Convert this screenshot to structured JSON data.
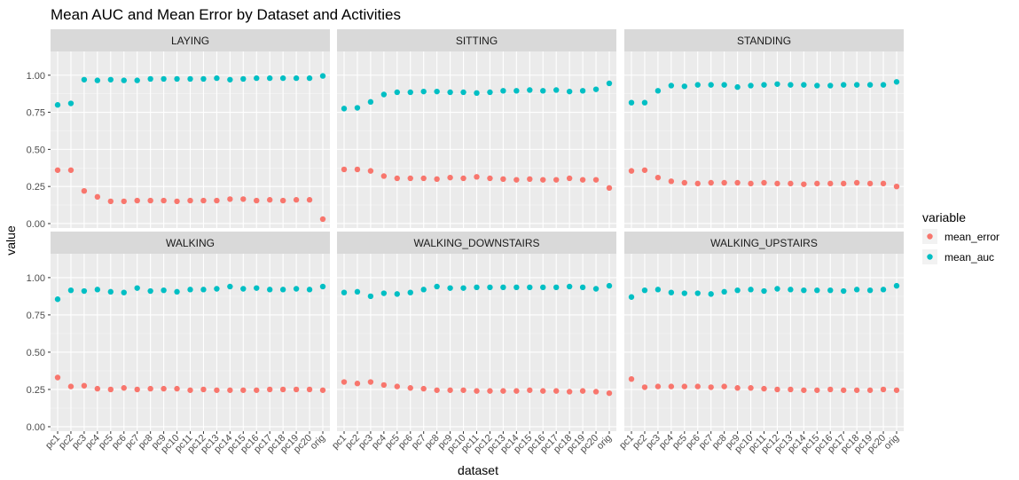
{
  "chart_data": {
    "type": "scatter",
    "title": "Mean AUC and Mean Error by Dataset and Activities",
    "xlabel": "dataset",
    "ylabel": "value",
    "ylim": [
      -0.03,
      1.16
    ],
    "yticks": [
      0.0,
      0.25,
      0.5,
      0.75,
      1.0
    ],
    "ytick_labels": [
      "0.00",
      "0.25",
      "0.50",
      "0.75",
      "1.00"
    ],
    "grid": true,
    "legend": {
      "title": "variable",
      "position": "right"
    },
    "categories": [
      "pc1",
      "pc2",
      "pc3",
      "pc4",
      "pc5",
      "pc6",
      "pc7",
      "pc8",
      "pc9",
      "pc10",
      "pc11",
      "pc12",
      "pc13",
      "pc14",
      "pc15",
      "pc16",
      "pc17",
      "pc18",
      "pc19",
      "pc20",
      "orig"
    ],
    "series_meta": [
      {
        "name": "mean_error",
        "color": "#F8766D"
      },
      {
        "name": "mean_auc",
        "color": "#00BFC4"
      }
    ],
    "facets": [
      {
        "label": "LAYING",
        "mean_error": [
          0.36,
          0.36,
          0.22,
          0.18,
          0.15,
          0.15,
          0.155,
          0.155,
          0.155,
          0.15,
          0.155,
          0.155,
          0.155,
          0.165,
          0.165,
          0.155,
          0.16,
          0.155,
          0.16,
          0.16,
          0.03
        ],
        "mean_auc": [
          0.8,
          0.81,
          0.97,
          0.965,
          0.97,
          0.965,
          0.965,
          0.975,
          0.975,
          0.975,
          0.975,
          0.975,
          0.98,
          0.97,
          0.975,
          0.98,
          0.98,
          0.98,
          0.98,
          0.98,
          0.995
        ]
      },
      {
        "label": "SITTING",
        "mean_error": [
          0.365,
          0.365,
          0.355,
          0.32,
          0.305,
          0.305,
          0.305,
          0.3,
          0.31,
          0.305,
          0.315,
          0.305,
          0.3,
          0.295,
          0.3,
          0.295,
          0.295,
          0.305,
          0.295,
          0.295,
          0.24
        ],
        "mean_auc": [
          0.775,
          0.78,
          0.82,
          0.87,
          0.885,
          0.885,
          0.89,
          0.89,
          0.885,
          0.885,
          0.88,
          0.885,
          0.895,
          0.895,
          0.9,
          0.895,
          0.9,
          0.89,
          0.895,
          0.905,
          0.945
        ]
      },
      {
        "label": "STANDING",
        "mean_error": [
          0.355,
          0.36,
          0.31,
          0.285,
          0.275,
          0.27,
          0.275,
          0.275,
          0.275,
          0.27,
          0.275,
          0.27,
          0.27,
          0.265,
          0.27,
          0.27,
          0.27,
          0.275,
          0.27,
          0.27,
          0.25
        ],
        "mean_auc": [
          0.815,
          0.815,
          0.895,
          0.93,
          0.925,
          0.935,
          0.935,
          0.935,
          0.92,
          0.93,
          0.935,
          0.94,
          0.935,
          0.935,
          0.93,
          0.93,
          0.935,
          0.935,
          0.935,
          0.935,
          0.955
        ]
      },
      {
        "label": "WALKING",
        "mean_error": [
          0.33,
          0.27,
          0.275,
          0.255,
          0.25,
          0.26,
          0.25,
          0.255,
          0.255,
          0.255,
          0.245,
          0.25,
          0.245,
          0.245,
          0.245,
          0.245,
          0.25,
          0.25,
          0.25,
          0.25,
          0.245
        ],
        "mean_auc": [
          0.855,
          0.915,
          0.91,
          0.92,
          0.905,
          0.9,
          0.93,
          0.91,
          0.915,
          0.905,
          0.92,
          0.92,
          0.925,
          0.94,
          0.925,
          0.93,
          0.92,
          0.92,
          0.925,
          0.92,
          0.94
        ]
      },
      {
        "label": "WALKING_DOWNSTAIRS",
        "mean_error": [
          0.3,
          0.29,
          0.3,
          0.28,
          0.27,
          0.26,
          0.255,
          0.245,
          0.245,
          0.245,
          0.24,
          0.24,
          0.24,
          0.24,
          0.245,
          0.24,
          0.24,
          0.235,
          0.24,
          0.235,
          0.225
        ],
        "mean_auc": [
          0.9,
          0.905,
          0.875,
          0.895,
          0.89,
          0.9,
          0.92,
          0.94,
          0.93,
          0.93,
          0.935,
          0.935,
          0.935,
          0.935,
          0.935,
          0.935,
          0.935,
          0.94,
          0.935,
          0.925,
          0.945
        ]
      },
      {
        "label": "WALKING_UPSTAIRS",
        "mean_error": [
          0.32,
          0.265,
          0.27,
          0.27,
          0.27,
          0.27,
          0.265,
          0.27,
          0.26,
          0.26,
          0.255,
          0.25,
          0.25,
          0.245,
          0.245,
          0.25,
          0.245,
          0.245,
          0.245,
          0.25,
          0.245
        ],
        "mean_auc": [
          0.87,
          0.915,
          0.92,
          0.9,
          0.895,
          0.895,
          0.89,
          0.905,
          0.915,
          0.92,
          0.91,
          0.925,
          0.92,
          0.915,
          0.915,
          0.915,
          0.91,
          0.92,
          0.915,
          0.92,
          0.945
        ]
      }
    ]
  }
}
